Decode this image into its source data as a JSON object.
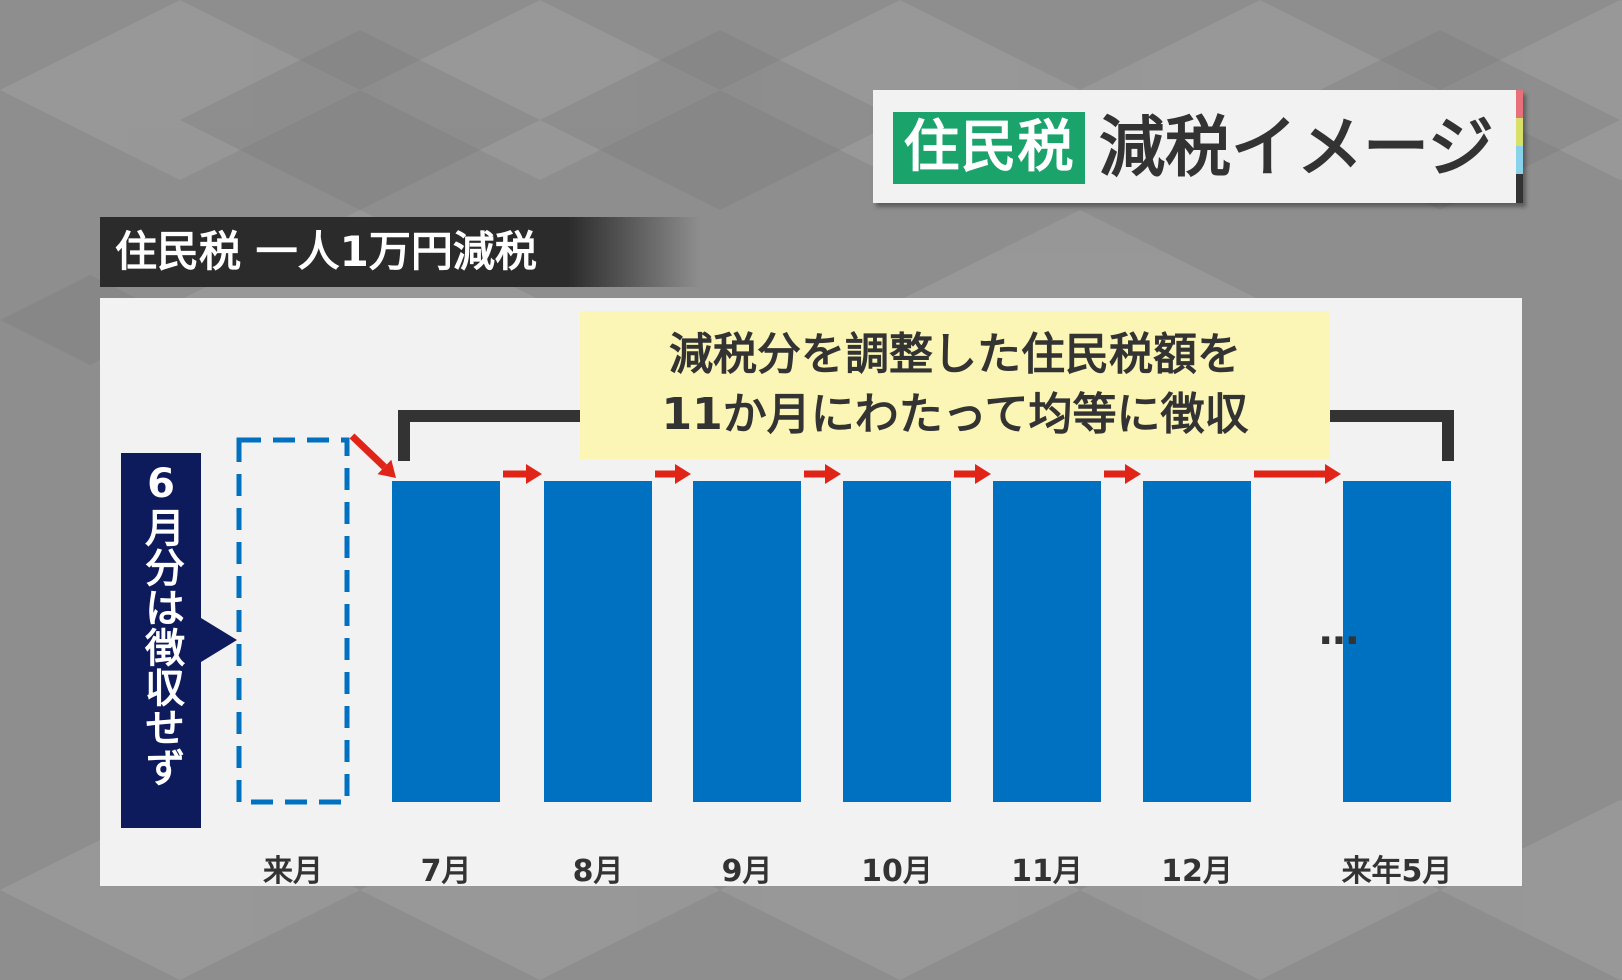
{
  "title": {
    "tag": "住民税",
    "main": "減税イメージ",
    "stripe_colors": [
      "#e8707a",
      "#d8e06a",
      "#8ad2ea",
      "#333333"
    ]
  },
  "subheading": "住民税 一人1万円減税",
  "callout": {
    "line1": "減税分を調整した住民税額を",
    "line2": "11か月にわたって均等に徴収"
  },
  "side_label": "6月分は徴収せず",
  "ellipsis": "…",
  "chart_data": {
    "type": "bar",
    "categories": [
      "来月",
      "7月",
      "8月",
      "9月",
      "10月",
      "11月",
      "12月",
      "来年5月"
    ],
    "values": [
      0,
      1,
      1,
      1,
      1,
      1,
      1,
      1
    ],
    "title": "",
    "xlabel": "",
    "ylabel": "",
    "ylim": [
      0,
      1
    ],
    "empty_bar": "来月",
    "gap_after": "12月",
    "colors": {
      "bar": "#0070c0",
      "dashed": "#0070c0",
      "arrow": "#e02418",
      "bracket": "#333333"
    }
  }
}
